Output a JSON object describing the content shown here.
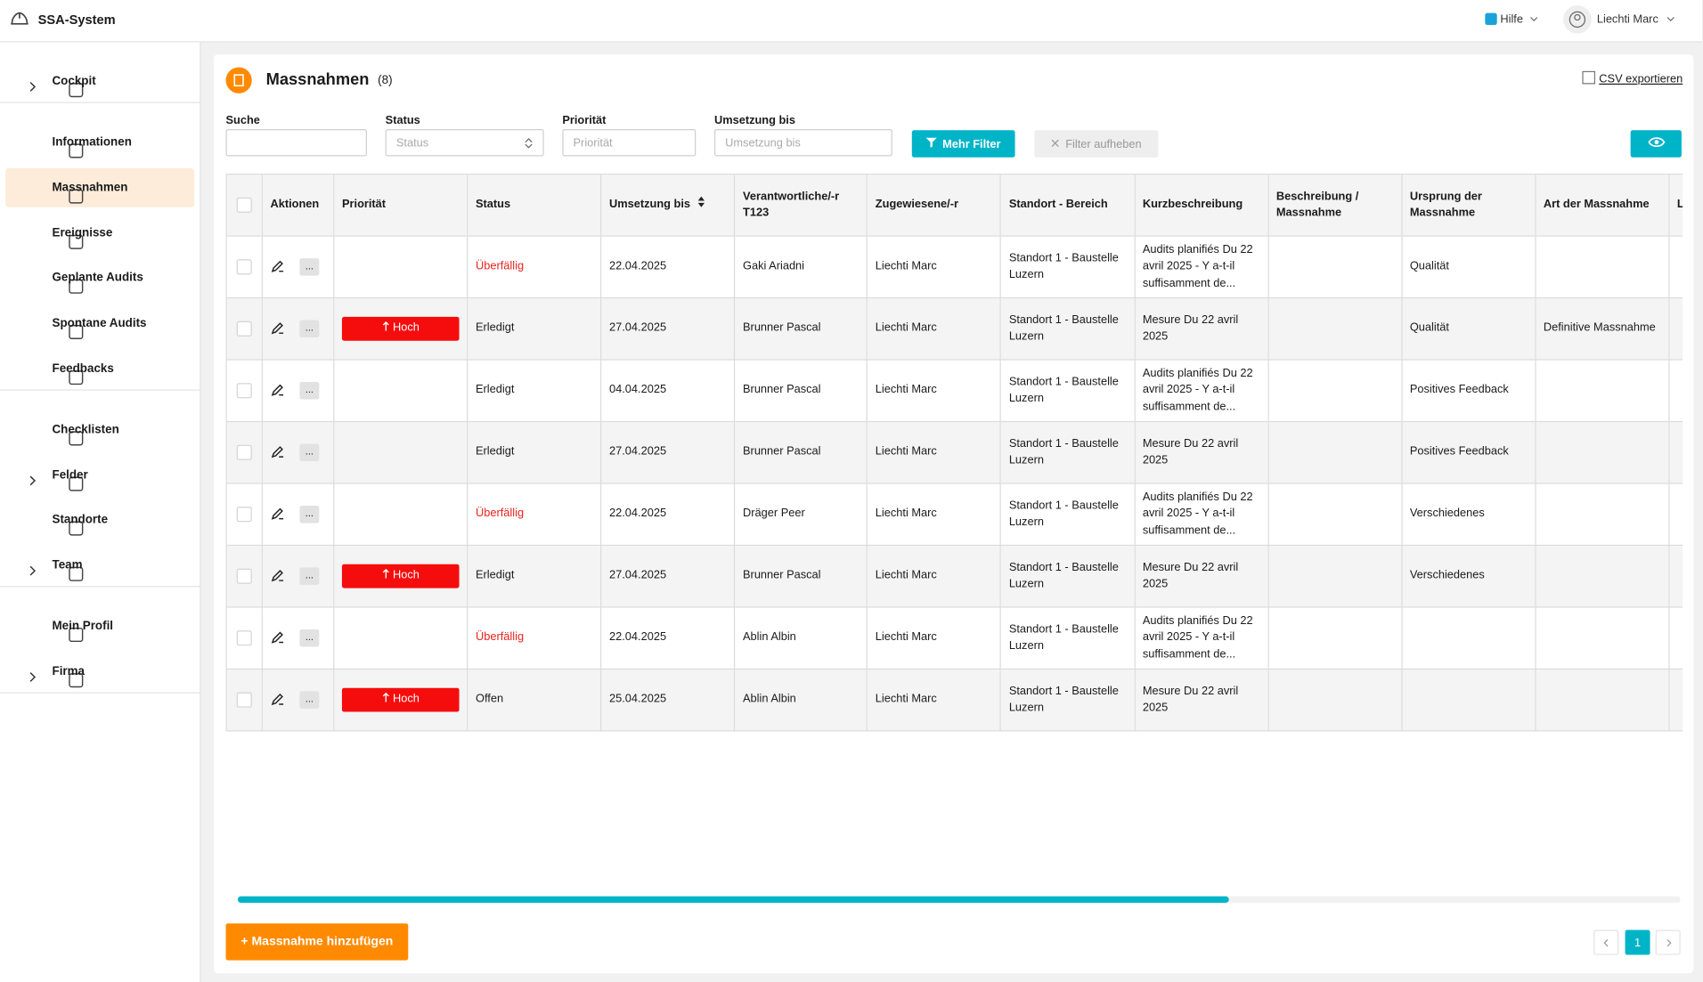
{
  "header": {
    "app_name": "SSA-System",
    "help": "Hilfe",
    "user": "Liechti Marc"
  },
  "sidebar": {
    "groups": [
      [
        {
          "label": "Cockpit",
          "chevron": true
        }
      ],
      [
        {
          "label": "Informationen"
        },
        {
          "label": "Massnahmen",
          "active": true
        },
        {
          "label": "Ereignisse"
        },
        {
          "label": "Geplante Audits"
        },
        {
          "label": "Spontane Audits"
        },
        {
          "label": "Feedbacks"
        }
      ],
      [
        {
          "label": "Checklisten"
        },
        {
          "label": "Felder",
          "chevron": true
        },
        {
          "label": "Standorte"
        },
        {
          "label": "Team",
          "chevron": true
        }
      ],
      [
        {
          "label": "Mein Profil"
        },
        {
          "label": "Firma",
          "chevron": true
        }
      ]
    ]
  },
  "page": {
    "title": "Massnahmen",
    "count": "(8)",
    "export": "CSV exportieren"
  },
  "filters": {
    "fields": [
      {
        "label": "Suche"
      },
      {
        "label": "Status",
        "placeholder": "Status",
        "select": true
      },
      {
        "label": "Priorität",
        "placeholder": "Priorität"
      },
      {
        "label": "Umsetzung bis",
        "placeholder": "Umsetzung bis"
      }
    ],
    "more": "Mehr Filter",
    "clear": "Filter aufheben"
  },
  "table": {
    "columns": [
      "Aktionen",
      "Priorität",
      "Status",
      "Umsetzung bis",
      "Verantwortliche/-r T123",
      "Zugewiesene/-r",
      "Standort - Bereich",
      "Kurzbeschreibung",
      "Beschreibung / Massnahme",
      "Ursprung der Massnahme",
      "Art der Massnahme",
      "L"
    ],
    "more_label": "...",
    "rows": [
      {
        "priority": null,
        "status": "Überfällig",
        "status_color": "#e8231c",
        "date": "22.04.2025",
        "responsible": "Gaki Ariadni",
        "assigned": "Liechti Marc",
        "location": "Standort 1 - Baustelle Luzern",
        "short": "Audits planifiés Du 22 avril 2025 - Y a-t-il suffisamment de...",
        "description": null,
        "origin": "Qualität",
        "kind": null
      },
      {
        "priority": "Hoch",
        "status": "Erledigt",
        "date": "27.04.2025",
        "responsible": "Brunner Pascal",
        "assigned": "Liechti Marc",
        "location": "Standort 1 - Baustelle Luzern",
        "short": "Mesure Du 22 avril 2025",
        "description": null,
        "origin": "Qualität",
        "kind": "Definitive Massnahme"
      },
      {
        "priority": null,
        "status": "Erledigt",
        "date": "04.04.2025",
        "responsible": "Brunner Pascal",
        "assigned": "Liechti Marc",
        "location": "Standort 1 - Baustelle Luzern",
        "short": "Audits planifiés Du 22 avril 2025 - Y a-t-il suffisamment de...",
        "description": null,
        "origin": "Positives Feedback",
        "kind": null
      },
      {
        "priority": null,
        "status": "Erledigt",
        "date": "27.04.2025",
        "responsible": "Brunner Pascal",
        "assigned": "Liechti Marc",
        "location": "Standort 1 - Baustelle Luzern",
        "short": "Mesure Du 22 avril 2025",
        "description": null,
        "origin": "Positives Feedback",
        "kind": null
      },
      {
        "priority": null,
        "status": "Überfällig",
        "status_color": "#e8231c",
        "date": "22.04.2025",
        "responsible": "Dräger Peer",
        "assigned": "Liechti Marc",
        "location": "Standort 1 - Baustelle Luzern",
        "short": "Audits planifiés Du 22 avril 2025 - Y a-t-il suffisamment de...",
        "description": null,
        "origin": "Verschiedenes",
        "kind": null
      },
      {
        "priority": "Hoch",
        "status": "Erledigt",
        "date": "27.04.2025",
        "responsible": "Brunner Pascal",
        "assigned": "Liechti Marc",
        "location": "Standort 1 - Baustelle Luzern",
        "short": "Mesure Du 22 avril 2025",
        "description": null,
        "origin": "Verschiedenes",
        "kind": null
      },
      {
        "priority": null,
        "status": "Überfällig",
        "status_color": "#e8231c",
        "date": "22.04.2025",
        "responsible": "Ablin Albin",
        "assigned": "Liechti Marc",
        "location": "Standort 1 - Baustelle Luzern",
        "short": "Audits planifiés Du 22 avril 2025 - Y a-t-il suffisamment de...",
        "description": null,
        "origin": null,
        "kind": null
      },
      {
        "priority": "Hoch",
        "status": "Offen",
        "date": "25.04.2025",
        "responsible": "Ablin Albin",
        "assigned": "Liechti Marc",
        "location": "Standort 1 - Baustelle Luzern",
        "short": "Mesure Du 22 avril 2025",
        "description": null,
        "origin": null,
        "kind": null
      }
    ]
  },
  "actions": {
    "add": "+ Massnahme hinzufügen"
  },
  "pagination": {
    "current": "1"
  }
}
